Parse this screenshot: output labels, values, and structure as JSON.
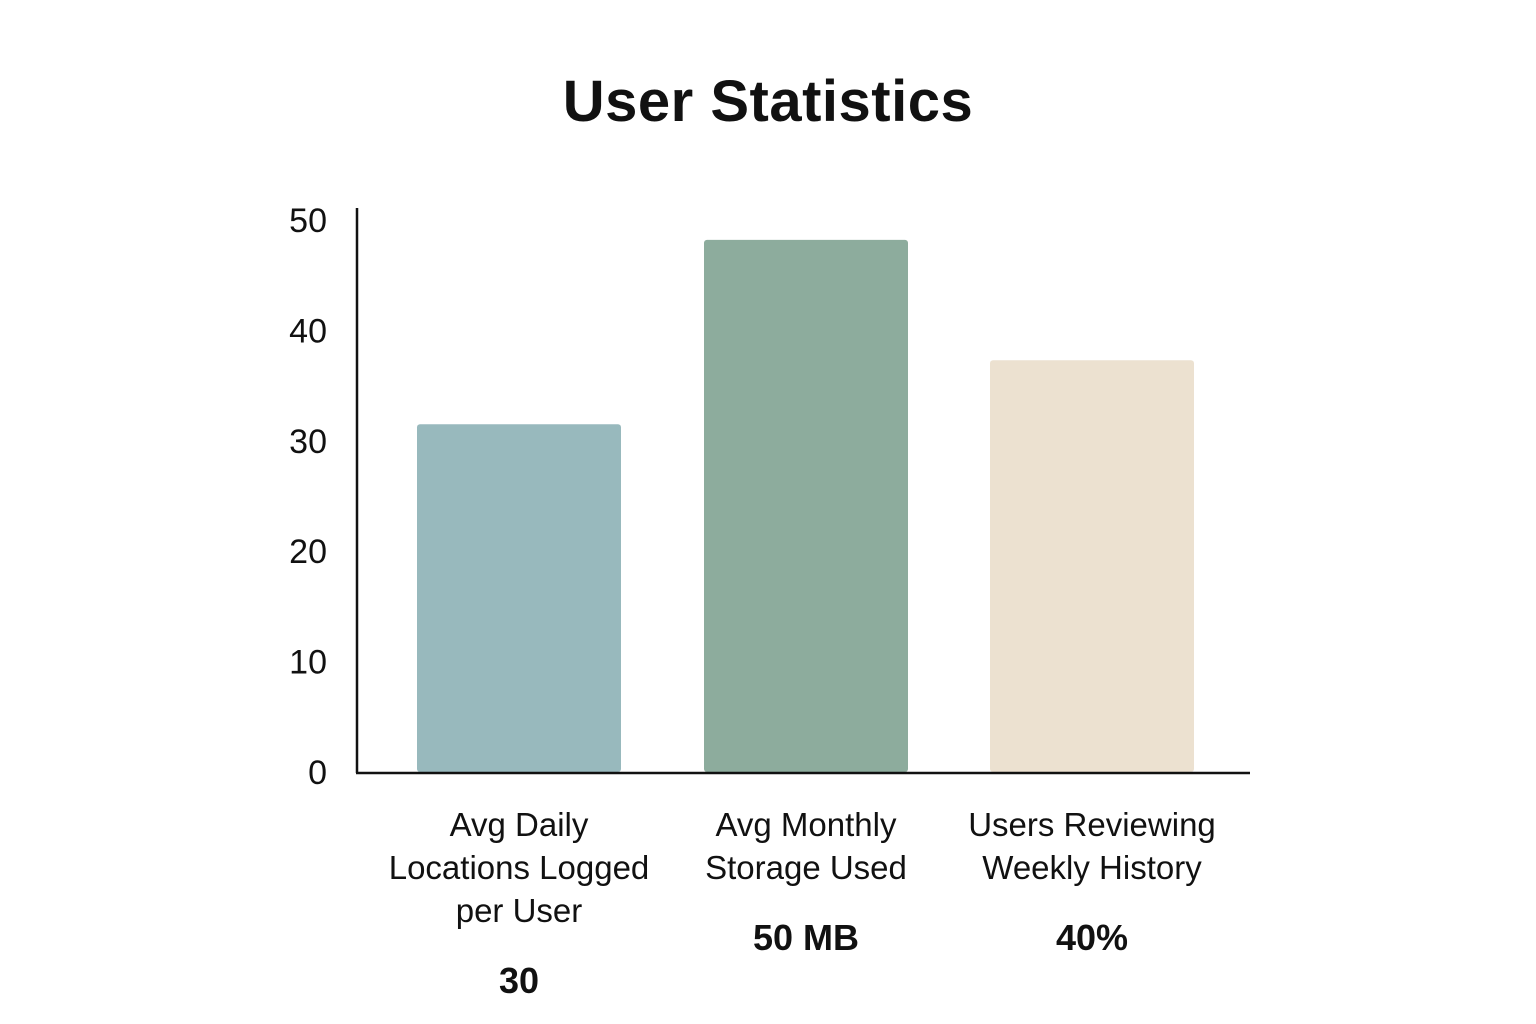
{
  "chart_data": {
    "type": "bar",
    "title": "User Statistics",
    "xlabel": "",
    "ylabel": "",
    "ylim": [
      0,
      50
    ],
    "yticks": [
      0,
      10,
      20,
      30,
      40,
      50
    ],
    "grid": false,
    "categories": [
      [
        "Avg Daily",
        "Locations Logged",
        "per User"
      ],
      [
        "Avg Monthly",
        "Storage Used"
      ],
      [
        "Users Reviewing",
        "Weekly History"
      ]
    ],
    "values": [
      31.5,
      48.2,
      37.3
    ],
    "value_labels": [
      "30",
      "50 MB",
      "40%"
    ],
    "colors": [
      "#98b9bd",
      "#8dac9d",
      "#ece1d0"
    ]
  }
}
